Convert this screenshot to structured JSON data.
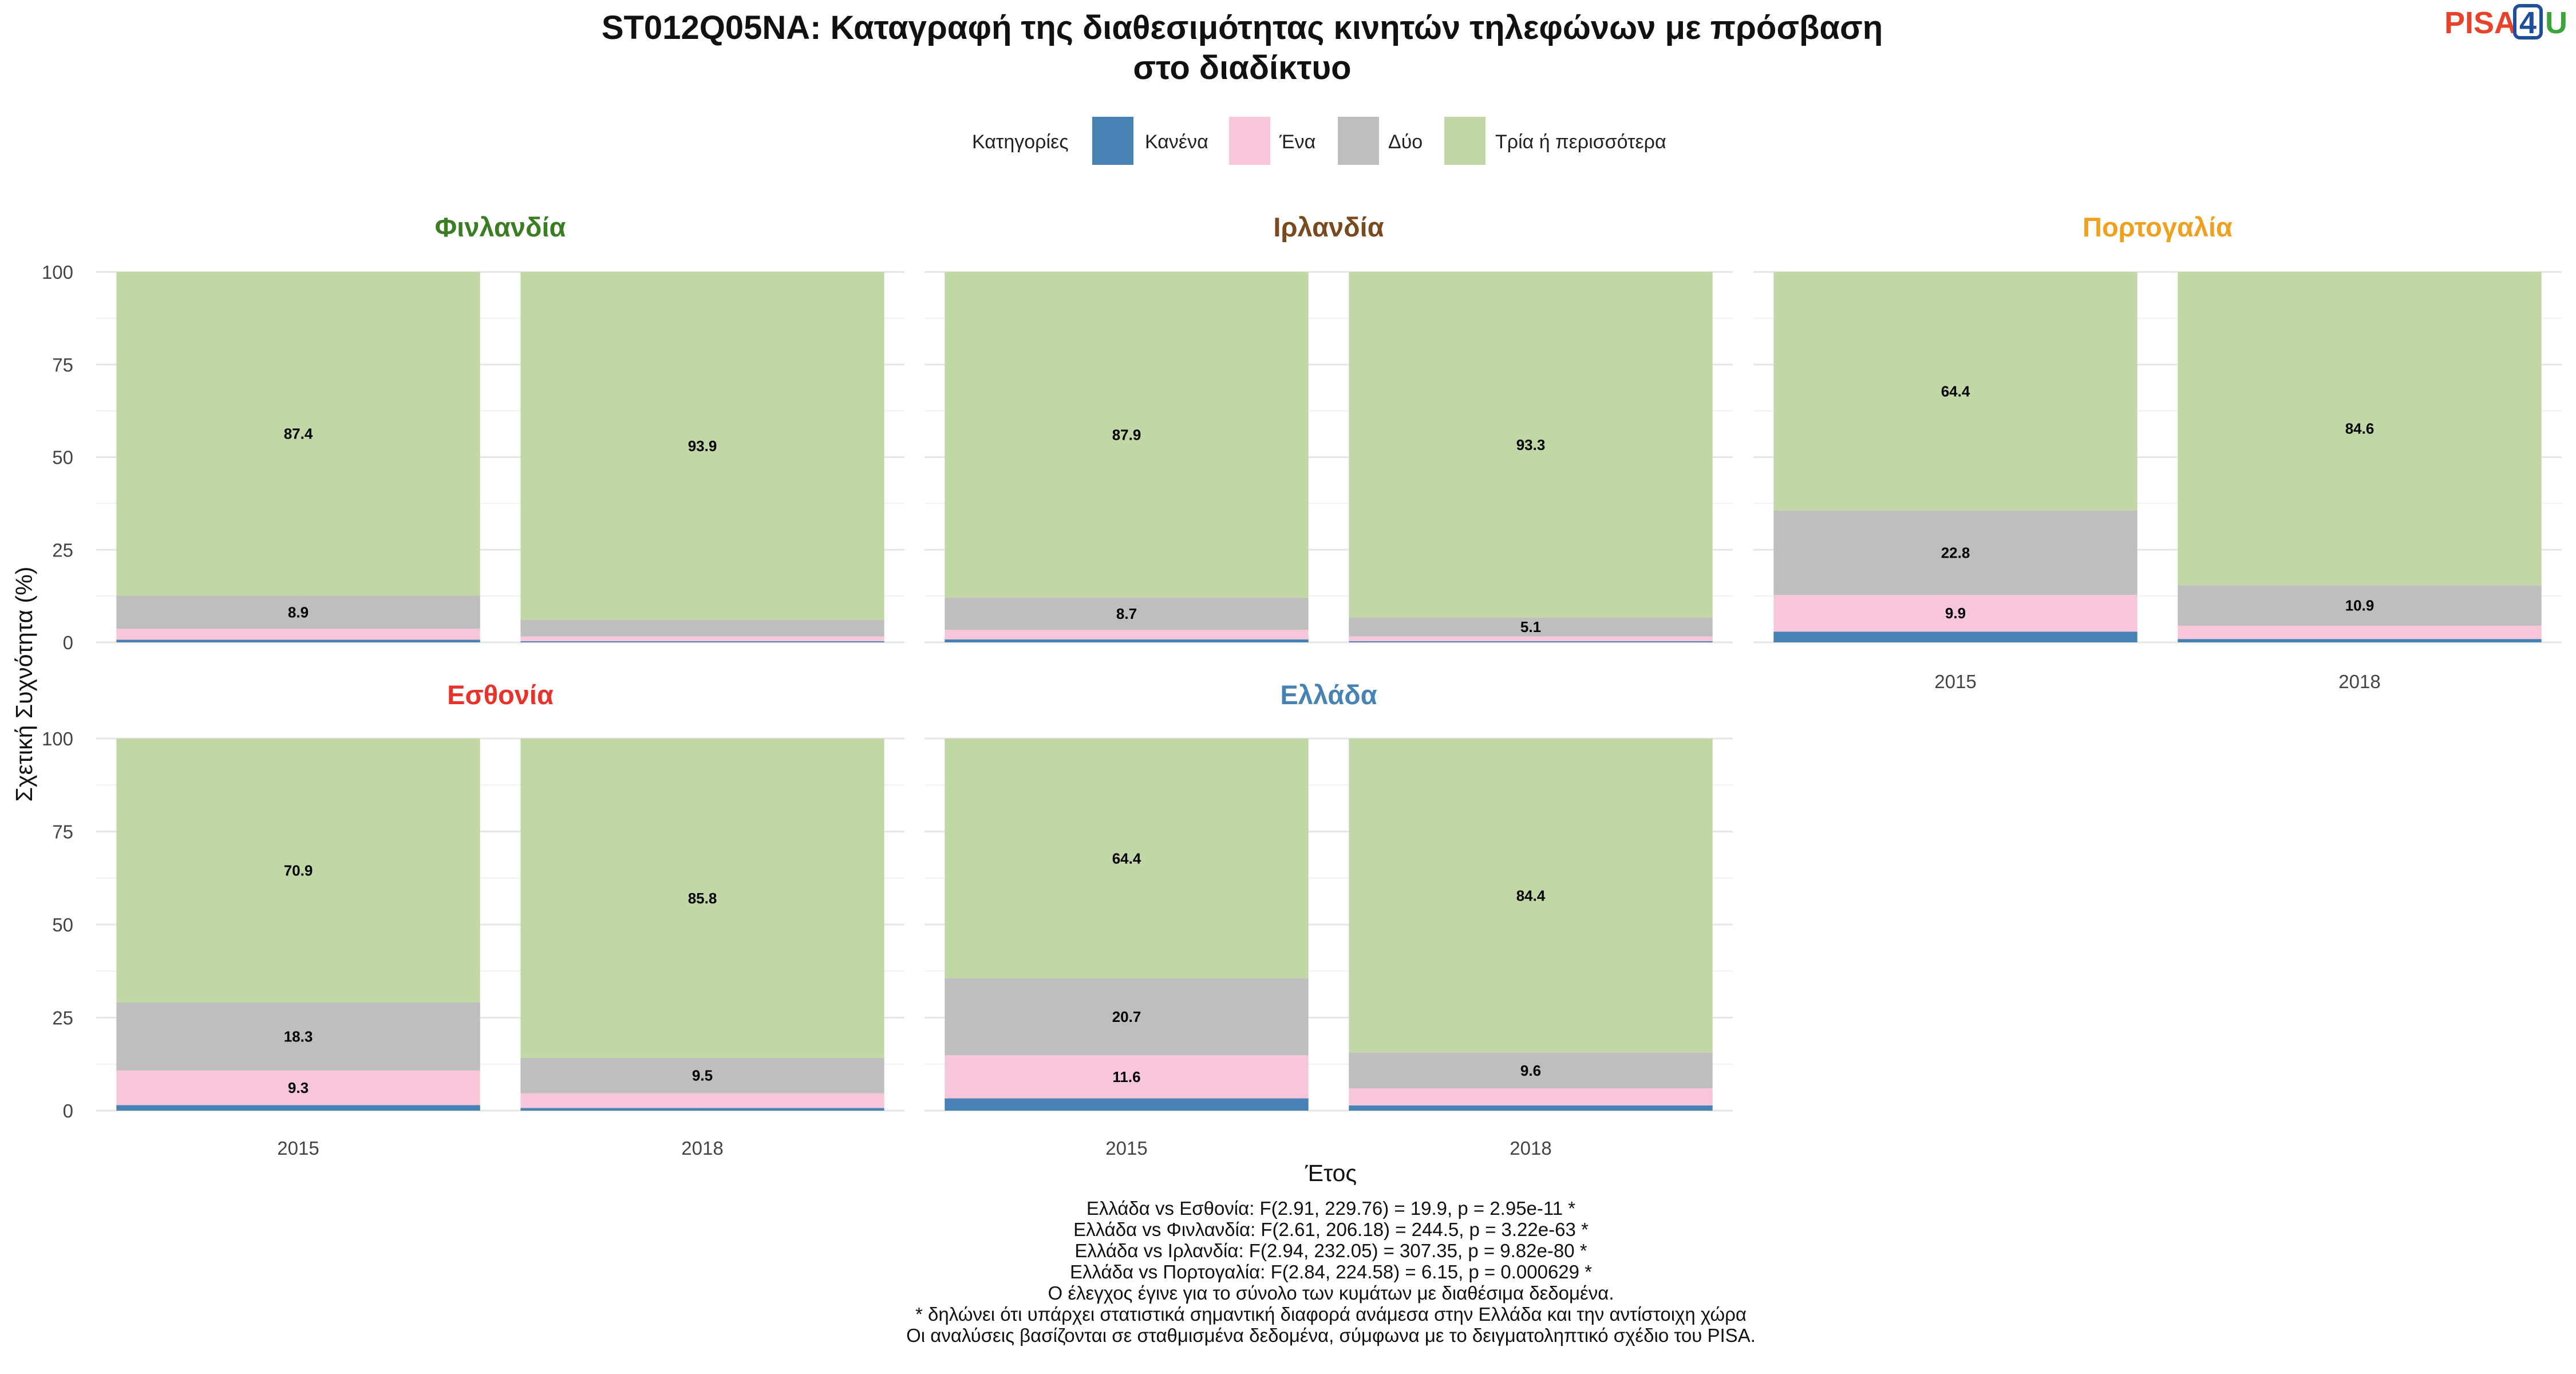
{
  "chart_data": {
    "type": "bar",
    "stacked": true,
    "title_lines": [
      "ST012Q05NA: Καταγραφή της διαθεσιμότητας κινητών τηλεφώνων με πρόσβαση",
      "στο διαδίκτυο"
    ],
    "xlabel": "Έτος",
    "ylabel": "Σχετική Συχνότητα (%)",
    "ylim": [
      0,
      100
    ],
    "yticks": [
      0,
      25,
      50,
      75,
      100
    ],
    "grid": true,
    "legend": {
      "title": "Κατηγορίες",
      "position": "top",
      "items": [
        {
          "label": "Κανένα",
          "color": "#4682b4"
        },
        {
          "label": "Ένα",
          "color": "#f7c6db"
        },
        {
          "label": "Δύο",
          "color": "#bebebe"
        },
        {
          "label": "Τρία ή περισσότερα",
          "color": "#c2d7a6"
        }
      ]
    },
    "categories": [
      "2015",
      "2018"
    ],
    "panels": [
      {
        "title": "Φινλανδία",
        "title_color": "#3a7d23",
        "series": [
          {
            "name": "Κανένα",
            "values": [
              0.7,
              0.3
            ]
          },
          {
            "name": "Ένα",
            "values": [
              3.0,
              1.3
            ]
          },
          {
            "name": "Δύο",
            "values": [
              8.9,
              4.5
            ]
          },
          {
            "name": "Τρία ή περισσότερα",
            "values": [
              87.4,
              93.9
            ]
          }
        ],
        "labels": [
          [
            "",
            "",
            "8.9",
            "87.4"
          ],
          [
            "",
            "",
            "",
            "93.9"
          ]
        ]
      },
      {
        "title": "Ιρλανδία",
        "title_color": "#7a4a1e",
        "series": [
          {
            "name": "Κανένα",
            "values": [
              0.8,
              0.3
            ]
          },
          {
            "name": "Ένα",
            "values": [
              2.6,
              1.3
            ]
          },
          {
            "name": "Δύο",
            "values": [
              8.7,
              5.1
            ]
          },
          {
            "name": "Τρία ή περισσότερα",
            "values": [
              87.9,
              93.3
            ]
          }
        ],
        "labels": [
          [
            "",
            "",
            "8.7",
            "87.9"
          ],
          [
            "",
            "",
            "5.1",
            "93.3"
          ]
        ]
      },
      {
        "title": "Πορτογαλία",
        "title_color": "#f0a01f",
        "series": [
          {
            "name": "Κανένα",
            "values": [
              2.9,
              0.9
            ]
          },
          {
            "name": "Ένα",
            "values": [
              9.9,
              3.6
            ]
          },
          {
            "name": "Δύο",
            "values": [
              22.8,
              10.9
            ]
          },
          {
            "name": "Τρία ή περισσότερα",
            "values": [
              64.4,
              84.6
            ]
          }
        ],
        "labels": [
          [
            "",
            "9.9",
            "22.8",
            "64.4"
          ],
          [
            "",
            "",
            "10.9",
            "84.6"
          ]
        ]
      },
      {
        "title": "Εσθονία",
        "title_color": "#e8322a",
        "series": [
          {
            "name": "Κανένα",
            "values": [
              1.5,
              0.7
            ]
          },
          {
            "name": "Ένα",
            "values": [
              9.3,
              4.0
            ]
          },
          {
            "name": "Δύο",
            "values": [
              18.3,
              9.5
            ]
          },
          {
            "name": "Τρία ή περισσότερα",
            "values": [
              70.9,
              85.8
            ]
          }
        ],
        "labels": [
          [
            "",
            "9.3",
            "18.3",
            "70.9"
          ],
          [
            "",
            "",
            "9.5",
            "85.8"
          ]
        ]
      },
      {
        "title": "Ελλάδα",
        "title_color": "#4682b4",
        "series": [
          {
            "name": "Κανένα",
            "values": [
              3.3,
              1.4
            ]
          },
          {
            "name": "Ένα",
            "values": [
              11.6,
              4.6
            ]
          },
          {
            "name": "Δύο",
            "values": [
              20.7,
              9.6
            ]
          },
          {
            "name": "Τρία ή περισσότερα",
            "values": [
              64.4,
              84.4
            ]
          }
        ],
        "labels": [
          [
            "",
            "11.6",
            "20.7",
            "64.4"
          ],
          [
            "",
            "",
            "9.6",
            "84.4"
          ]
        ]
      }
    ],
    "notes": [
      "Ελλάδα vs Εσθονία: F(2.91, 229.76) = 19.9, p = 2.95e-11 *",
      "Ελλάδα vs Φινλανδία: F(2.61, 206.18) = 244.5, p = 3.22e-63 *",
      "Ελλάδα vs Ιρλανδία: F(2.94, 232.05) = 307.35, p = 9.82e-80 *",
      "Ελλάδα vs Πορτογαλία: F(2.84, 224.58) = 6.15, p = 0.000629 *",
      "Ο έλεγχος έγινε για το σύνολο των κυμάτων με διαθέσιμα δεδομένα.",
      "* δηλώνει ότι υπάρχει στατιστικά σημαντική διαφορά ανάμεσα στην Ελλάδα και την αντίστοιχη χώρα",
      "Οι αναλύσεις βασίζονται σε σταθμισμένα δεδομένα, σύμφωνα με το δειγματοληπτικό σχέδιο του PISA."
    ]
  },
  "logo": {
    "prefix": "PISA",
    "digit": "4",
    "suffix": "U",
    "prefix_color": "#e8432a",
    "digit_color": "#1f4e9c",
    "suffix_color": "#3aa53a"
  }
}
